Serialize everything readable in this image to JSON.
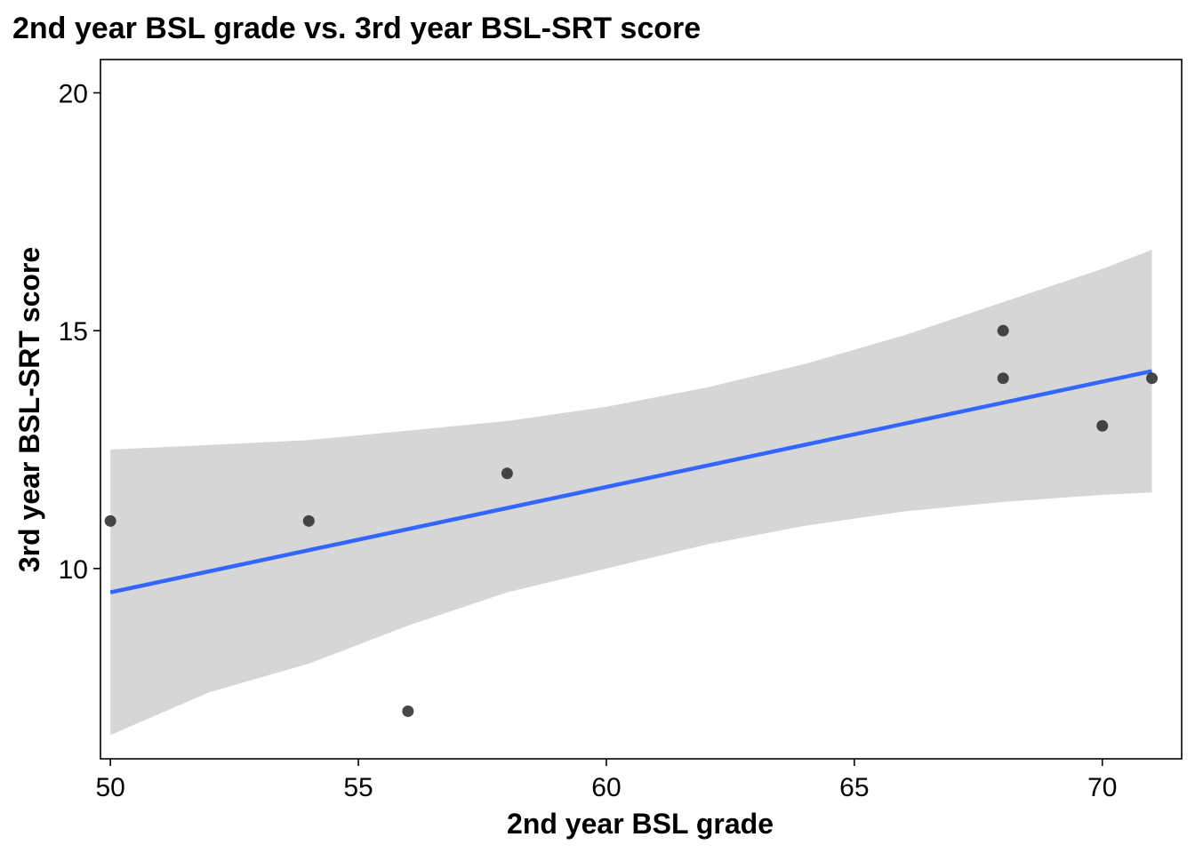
{
  "chart_data": {
    "type": "scatter",
    "title": "2nd year BSL grade vs. 3rd year BSL-SRT score",
    "xlabel": "2nd year BSL grade",
    "ylabel": "3rd year BSL-SRT score",
    "xlim": [
      49.8,
      71.6
    ],
    "ylim": [
      6.0,
      20.7
    ],
    "x_ticks": [
      50,
      55,
      60,
      65,
      70
    ],
    "y_ticks": [
      10,
      15,
      20
    ],
    "grid": false,
    "legend": "none",
    "points": [
      {
        "x": 50,
        "y": 11
      },
      {
        "x": 54,
        "y": 11
      },
      {
        "x": 56,
        "y": 7
      },
      {
        "x": 58,
        "y": 12
      },
      {
        "x": 68,
        "y": 15
      },
      {
        "x": 68,
        "y": 14
      },
      {
        "x": 70,
        "y": 13
      },
      {
        "x": 71,
        "y": 14
      }
    ],
    "fit_line": {
      "x": [
        50,
        71
      ],
      "y": [
        9.5,
        14.15
      ]
    },
    "confidence_band": {
      "x": [
        50,
        52,
        54,
        56,
        58,
        60,
        62,
        64,
        66,
        68,
        70,
        71
      ],
      "lower": [
        6.5,
        7.4,
        8.0,
        8.8,
        9.5,
        10.0,
        10.5,
        10.9,
        11.2,
        11.4,
        11.55,
        11.6
      ],
      "upper": [
        12.5,
        12.6,
        12.7,
        12.9,
        13.1,
        13.4,
        13.8,
        14.3,
        14.9,
        15.6,
        16.3,
        16.7
      ]
    },
    "colors": {
      "point": "#333333",
      "line": "#3366ff",
      "band": "#d6d6d6",
      "axis": "#000000"
    }
  }
}
